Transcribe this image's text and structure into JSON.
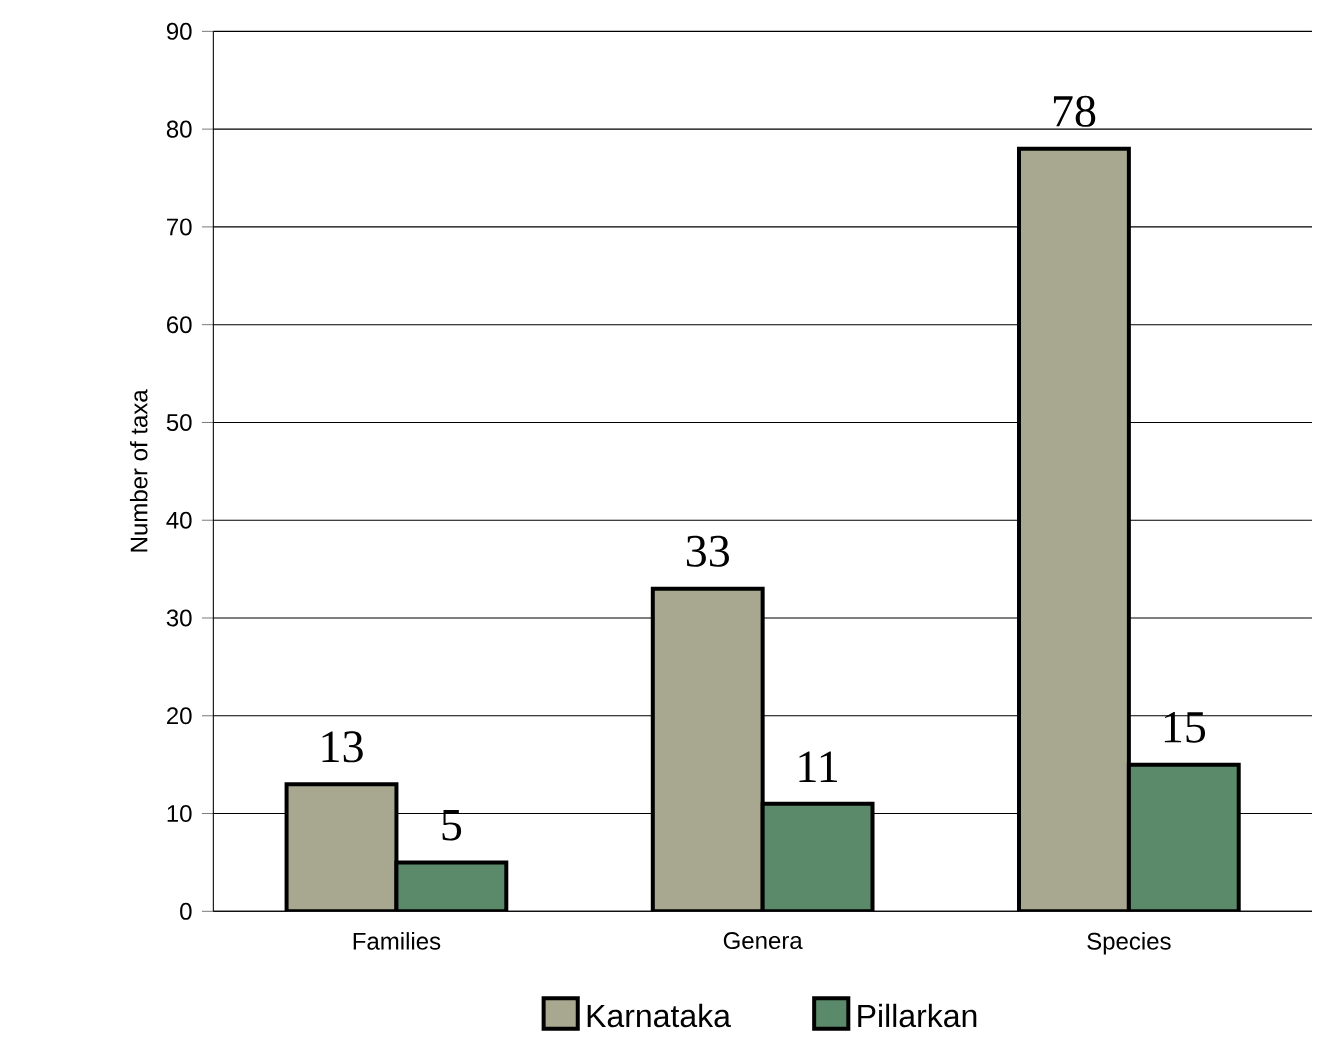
{
  "chart_data": {
    "type": "bar",
    "ylabel": "Number of taxa",
    "categories": [
      "Families",
      "Genera",
      "Species"
    ],
    "series": [
      {
        "name": "Karnataka",
        "color": "#a8a890",
        "values": [
          13,
          33,
          78
        ]
      },
      {
        "name": "Pillarkan",
        "color": "#5a8a6a",
        "values": [
          5,
          11,
          15
        ]
      }
    ],
    "ylim": [
      0,
      90
    ],
    "yticks": [
      0,
      10,
      20,
      30,
      40,
      50,
      60,
      70,
      80,
      90
    ],
    "grid": "y",
    "legend": "bottom",
    "data_labels": true
  }
}
